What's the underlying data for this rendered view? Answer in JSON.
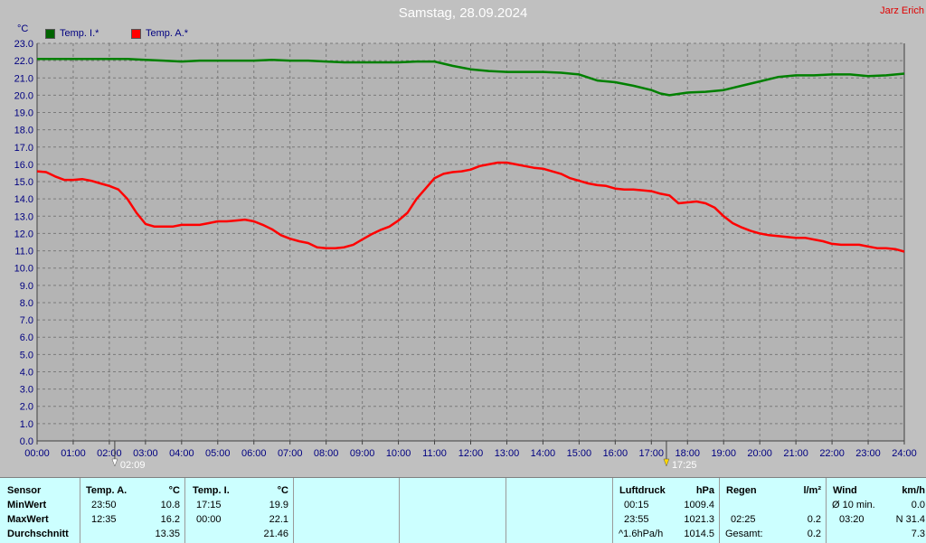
{
  "title": "Samstag, 28.09.2024",
  "author": "Jarz Erich",
  "unit": "°C",
  "legend": [
    {
      "label": "Temp. I.*",
      "color": "#006400"
    },
    {
      "label": "Temp. A.*",
      "color": "#ff0000"
    }
  ],
  "markers": [
    {
      "time": "02:09",
      "label": "02:09"
    },
    {
      "time": "17:25",
      "label": "17:25"
    }
  ],
  "chart_data": {
    "type": "line",
    "title": "Samstag, 28.09.2024",
    "ylabel": "°C",
    "xlabel": "",
    "ylim": [
      0,
      23
    ],
    "xlim": [
      0,
      24
    ],
    "grid": true,
    "legend_position": "top-left",
    "x_ticks": [
      "00:00",
      "01:00",
      "02:00",
      "03:00",
      "04:00",
      "05:00",
      "06:00",
      "07:00",
      "08:00",
      "09:00",
      "10:00",
      "11:00",
      "12:00",
      "13:00",
      "14:00",
      "15:00",
      "16:00",
      "17:00",
      "18:00",
      "19:00",
      "20:00",
      "21:00",
      "22:00",
      "23:00",
      "24:00"
    ],
    "y_ticks": [
      "0.0",
      "1.0",
      "2.0",
      "3.0",
      "4.0",
      "5.0",
      "6.0",
      "7.0",
      "8.0",
      "9.0",
      "10.0",
      "11.0",
      "12.0",
      "13.0",
      "14.0",
      "15.0",
      "16.0",
      "17.0",
      "18.0",
      "19.0",
      "20.0",
      "21.0",
      "22.0",
      "23.0"
    ],
    "series": [
      {
        "name": "Temp. I.*",
        "color": "#008000",
        "x": [
          0,
          0.5,
          1,
          1.5,
          2,
          2.5,
          3,
          3.5,
          4,
          4.5,
          5,
          5.5,
          6,
          6.5,
          7,
          7.5,
          8,
          8.5,
          9,
          9.5,
          10,
          10.5,
          11,
          11.5,
          12,
          12.5,
          13,
          13.5,
          14,
          14.5,
          15,
          15.5,
          16,
          16.5,
          17,
          17.25,
          17.5,
          18,
          18.5,
          19,
          19.5,
          20,
          20.5,
          21,
          21.5,
          22,
          22.5,
          23,
          23.5,
          24
        ],
        "values": [
          22.1,
          22.1,
          22.1,
          22.1,
          22.1,
          22.1,
          22.05,
          22.0,
          21.95,
          22.0,
          22.0,
          22.0,
          22.0,
          22.05,
          22.0,
          22.0,
          21.95,
          21.9,
          21.9,
          21.9,
          21.9,
          21.95,
          21.95,
          21.7,
          21.5,
          21.4,
          21.35,
          21.35,
          21.35,
          21.3,
          21.2,
          20.85,
          20.75,
          20.55,
          20.3,
          20.1,
          20.0,
          20.15,
          20.2,
          20.3,
          20.55,
          20.8,
          21.05,
          21.15,
          21.15,
          21.2,
          21.2,
          21.1,
          21.15,
          21.25
        ]
      },
      {
        "name": "Temp. A.*",
        "color": "#ff0000",
        "x": [
          0,
          0.25,
          0.5,
          0.75,
          1,
          1.25,
          1.5,
          1.75,
          2,
          2.25,
          2.5,
          2.75,
          3,
          3.25,
          3.5,
          3.75,
          4,
          4.25,
          4.5,
          4.75,
          5,
          5.25,
          5.5,
          5.75,
          6,
          6.25,
          6.5,
          6.75,
          7,
          7.25,
          7.5,
          7.75,
          8,
          8.25,
          8.5,
          8.75,
          9,
          9.25,
          9.5,
          9.75,
          10,
          10.25,
          10.5,
          10.75,
          11,
          11.25,
          11.5,
          11.75,
          12,
          12.25,
          12.5,
          12.75,
          13,
          13.25,
          13.5,
          13.75,
          14,
          14.25,
          14.5,
          14.75,
          15,
          15.25,
          15.5,
          15.75,
          16,
          16.25,
          16.5,
          16.75,
          17,
          17.25,
          17.5,
          17.75,
          18,
          18.25,
          18.5,
          18.75,
          19,
          19.25,
          19.5,
          19.75,
          20,
          20.25,
          20.5,
          20.75,
          21,
          21.25,
          21.5,
          21.75,
          22,
          22.25,
          22.5,
          22.75,
          23,
          23.25,
          23.5,
          23.75,
          24
        ],
        "values": [
          15.6,
          15.55,
          15.3,
          15.1,
          15.1,
          15.15,
          15.05,
          14.9,
          14.75,
          14.55,
          14.0,
          13.2,
          12.55,
          12.4,
          12.4,
          12.4,
          12.5,
          12.5,
          12.5,
          12.6,
          12.7,
          12.7,
          12.75,
          12.8,
          12.7,
          12.5,
          12.25,
          11.9,
          11.7,
          11.55,
          11.45,
          11.2,
          11.15,
          11.15,
          11.2,
          11.35,
          11.65,
          11.95,
          12.2,
          12.4,
          12.75,
          13.2,
          14.0,
          14.6,
          15.2,
          15.45,
          15.55,
          15.6,
          15.7,
          15.9,
          16.0,
          16.1,
          16.1,
          16.0,
          15.9,
          15.8,
          15.75,
          15.6,
          15.45,
          15.2,
          15.05,
          14.9,
          14.8,
          14.75,
          14.6,
          14.55,
          14.55,
          14.5,
          14.45,
          14.3,
          14.2,
          13.75,
          13.8,
          13.85,
          13.75,
          13.5,
          13.0,
          12.6,
          12.35,
          12.15,
          12.0,
          11.9,
          11.85,
          11.8,
          11.75,
          11.75,
          11.65,
          11.55,
          11.4,
          11.35,
          11.35,
          11.35,
          11.25,
          11.15,
          11.15,
          11.1,
          10.95
        ]
      }
    ]
  },
  "stats": {
    "sensor": {
      "header": "Sensor",
      "rows": [
        "MinWert",
        "MaxWert",
        "Durchschnitt"
      ]
    },
    "temp_a": {
      "header": "Temp. A.",
      "unit": "°C",
      "rows": [
        {
          "time": "23:50",
          "value": "10.8"
        },
        {
          "time": "12:35",
          "value": "16.2"
        },
        {
          "time": "",
          "value": "13.35"
        }
      ]
    },
    "temp_i": {
      "header": "Temp. I.",
      "unit": "°C",
      "rows": [
        {
          "time": "17:15",
          "value": "19.9"
        },
        {
          "time": "00:00",
          "value": "22.1"
        },
        {
          "time": "",
          "value": "21.46"
        }
      ]
    },
    "luftdruck": {
      "header": "Luftdruck",
      "unit": "hPa",
      "rows": [
        {
          "time": "00:15",
          "value": "1009.4"
        },
        {
          "time": "23:55",
          "value": "1021.3"
        },
        {
          "time": "^1.6hPa/h",
          "value": "1014.5"
        }
      ]
    },
    "regen": {
      "header": "Regen",
      "unit": "l/m²",
      "rows": [
        {
          "time": "",
          "value": ""
        },
        {
          "time": "02:25",
          "value": "0.2"
        },
        {
          "time": "Gesamt:",
          "value": "0.2"
        }
      ]
    },
    "wind": {
      "header": "Wind",
      "unit": "km/h",
      "rows": [
        {
          "time": "Ø 10 min.",
          "value": "0.0"
        },
        {
          "time": "03:20",
          "value": "N 31.4"
        },
        {
          "time": "",
          "value": "7.3"
        }
      ]
    }
  }
}
